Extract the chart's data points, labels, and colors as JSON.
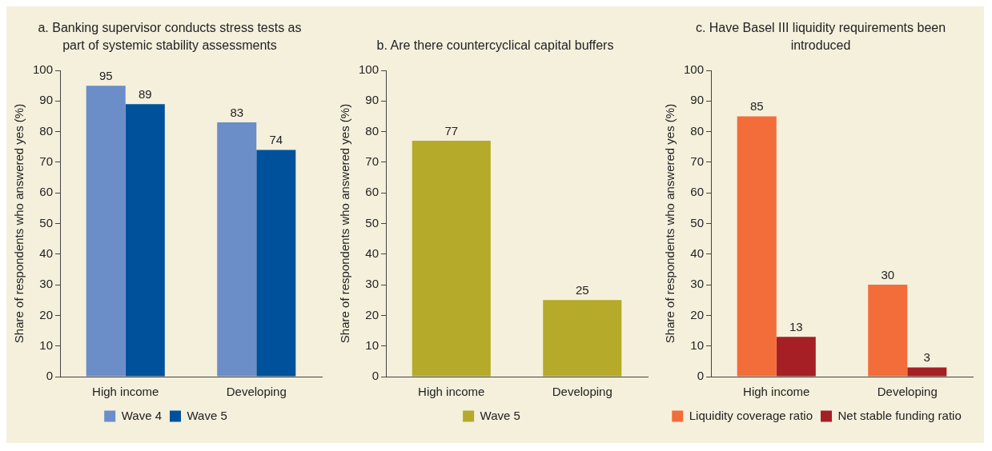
{
  "chart_data": [
    {
      "type": "bar",
      "title": "a. Banking supervisor conducts stress tests as part of systemic stability assessments",
      "ylabel": "Share of respondents who answered yes (%)",
      "categories": [
        "High income",
        "Developing"
      ],
      "series": [
        {
          "name": "Wave 4",
          "color": "#6b8dc8",
          "values": [
            95,
            83
          ]
        },
        {
          "name": "Wave 5",
          "color": "#00519b",
          "values": [
            89,
            74
          ]
        }
      ],
      "ylim": [
        0,
        100
      ],
      "yticks": [
        0,
        10,
        20,
        30,
        40,
        50,
        60,
        70,
        80,
        90,
        100
      ],
      "data_labels": true,
      "legend": "bottom"
    },
    {
      "type": "bar",
      "title": "b. Are there countercyclical capital buffers",
      "ylabel": "Share of respondents who answered yes (%)",
      "categories": [
        "High income",
        "Developing"
      ],
      "series": [
        {
          "name": "Wave 5",
          "color": "#b5aa2a",
          "values": [
            77,
            25
          ]
        }
      ],
      "ylim": [
        0,
        100
      ],
      "yticks": [
        0,
        10,
        20,
        30,
        40,
        50,
        60,
        70,
        80,
        90,
        100
      ],
      "data_labels": true,
      "legend": "bottom"
    },
    {
      "type": "bar",
      "title": "c. Have Basel III liquidity requirements been introduced",
      "ylabel": "Share of respondents who answered yes (%)",
      "categories": [
        "High income",
        "Developing"
      ],
      "series": [
        {
          "name": "Liquidity coverage ratio",
          "color": "#f36d3a",
          "values": [
            85,
            30
          ]
        },
        {
          "name": "Net stable funding ratio",
          "color": "#a51f24",
          "values": [
            13,
            3
          ]
        }
      ],
      "ylim": [
        0,
        100
      ],
      "yticks": [
        0,
        10,
        20,
        30,
        40,
        50,
        60,
        70,
        80,
        90,
        100
      ],
      "data_labels": true,
      "legend": "bottom"
    }
  ]
}
